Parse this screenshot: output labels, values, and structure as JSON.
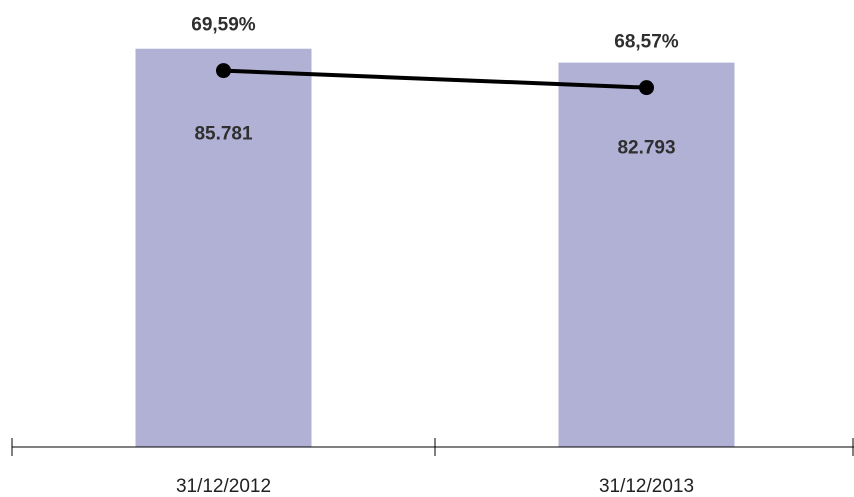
{
  "chart_data": {
    "type": "bar",
    "categories": [
      "31/12/2012",
      "31/12/2013"
    ],
    "series": [
      {
        "type": "bar",
        "values": [
          85781,
          82793
        ],
        "labels": [
          "85.781",
          "82.793"
        ],
        "color": "#b1b1d6"
      },
      {
        "type": "line",
        "values": [
          69.59,
          68.57
        ],
        "labels": [
          "69,59%",
          "68,57%"
        ],
        "color": "#000000"
      }
    ],
    "title": "",
    "xlabel": "",
    "ylabel": "",
    "legend": "none",
    "grid": false
  }
}
